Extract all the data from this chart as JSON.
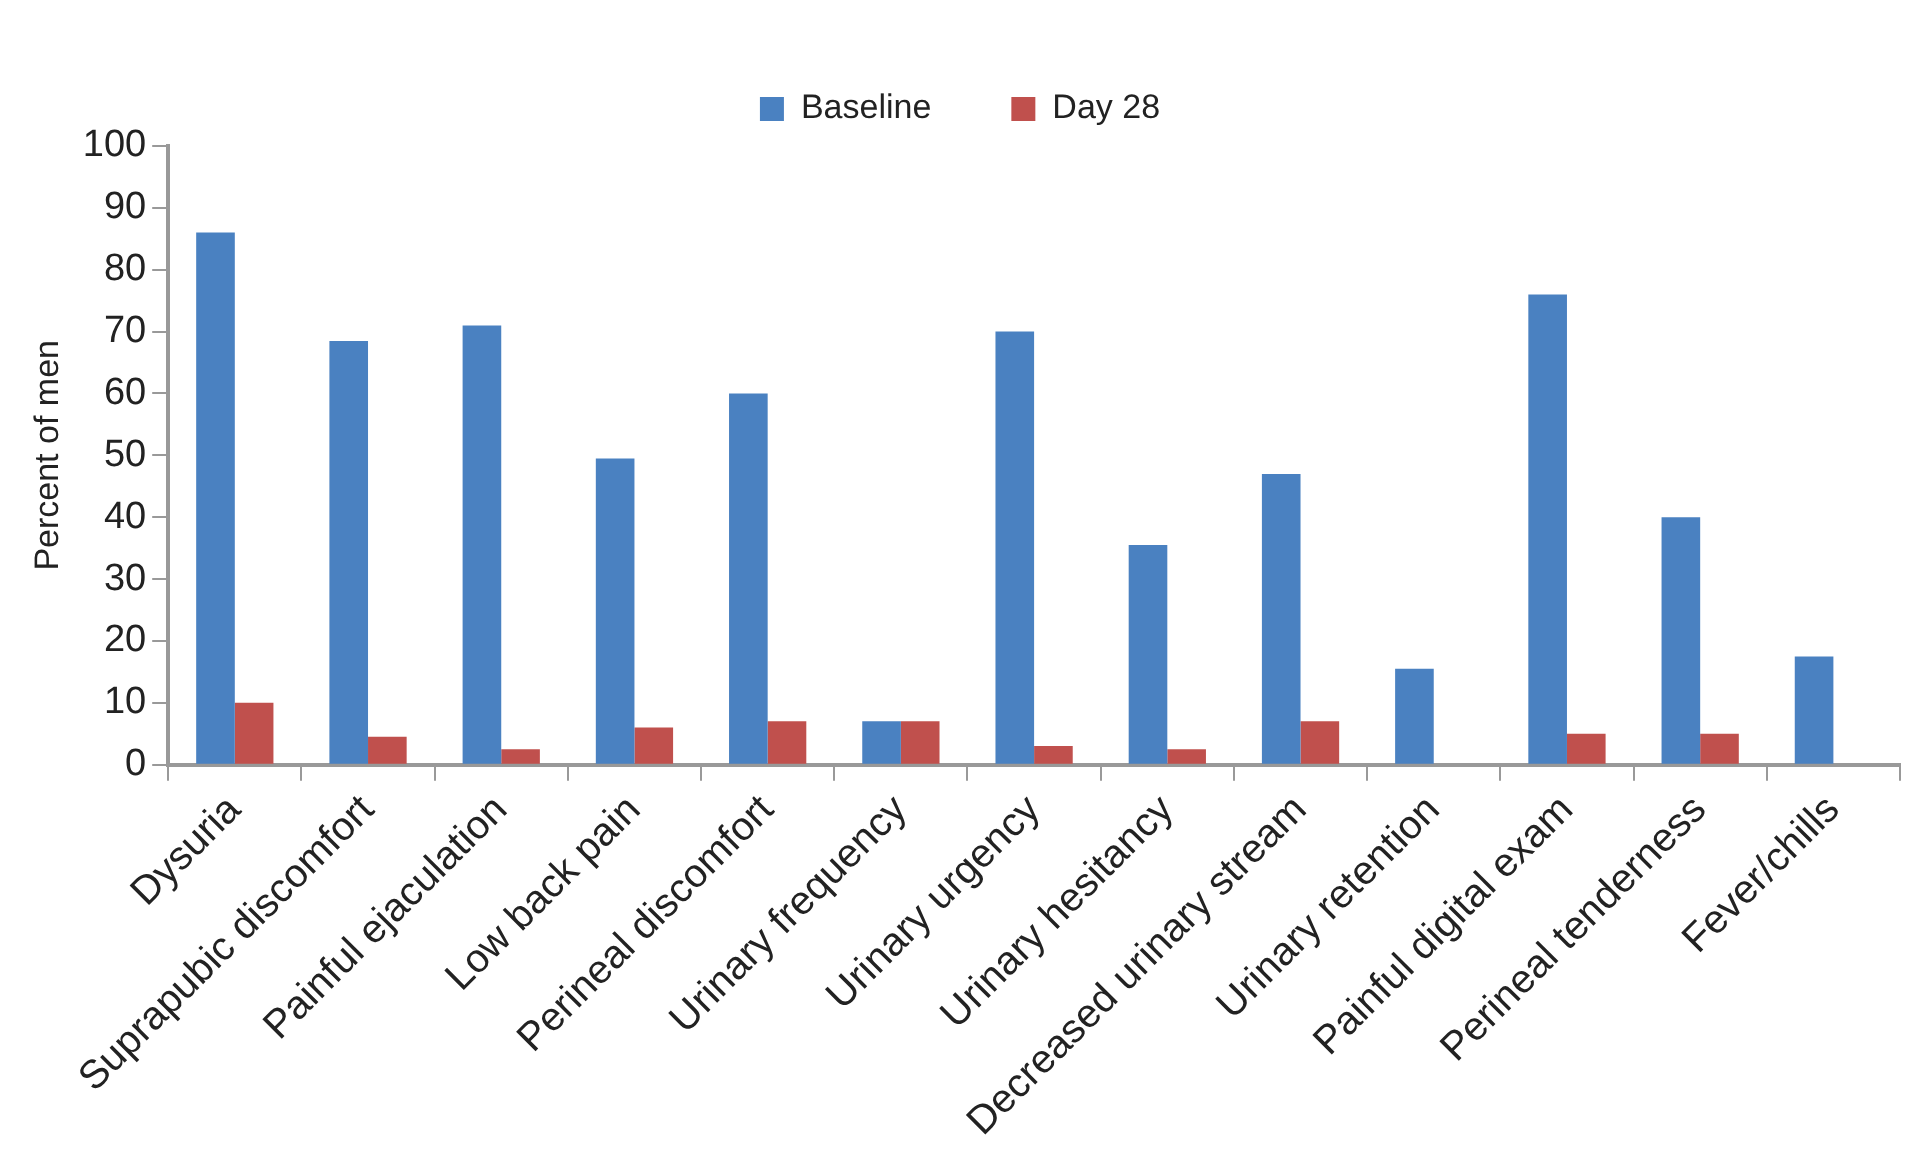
{
  "chart_data": {
    "type": "bar",
    "ylabel": "Percent of men",
    "categories": [
      "Dysuria",
      "Suprapubic discomfort",
      "Painful ejaculation",
      "Low back pain",
      "Perineal discomfort",
      "Urinary frequency",
      "Urinary urgency",
      "Urinary hesitancy",
      "Decreased urinary stream",
      "Urinary retention",
      "Painful digital exam",
      "Perineal tenderness",
      "Fever/chills"
    ],
    "series": [
      {
        "name": "Baseline",
        "color": "#4a81c1",
        "values": [
          86,
          68.5,
          71,
          49.5,
          60,
          7,
          70,
          35.5,
          47,
          15.5,
          76,
          40,
          17.5
        ]
      },
      {
        "name": "Day 28",
        "color": "#c0504d",
        "values": [
          10,
          4.5,
          2.5,
          6,
          7,
          7,
          3,
          2.5,
          7,
          0,
          5,
          5,
          0
        ]
      }
    ],
    "ylim": [
      0,
      100
    ],
    "yticks": [
      0,
      10,
      20,
      30,
      40,
      50,
      60,
      70,
      80,
      90,
      100
    ],
    "grid": false,
    "legend": "top"
  }
}
